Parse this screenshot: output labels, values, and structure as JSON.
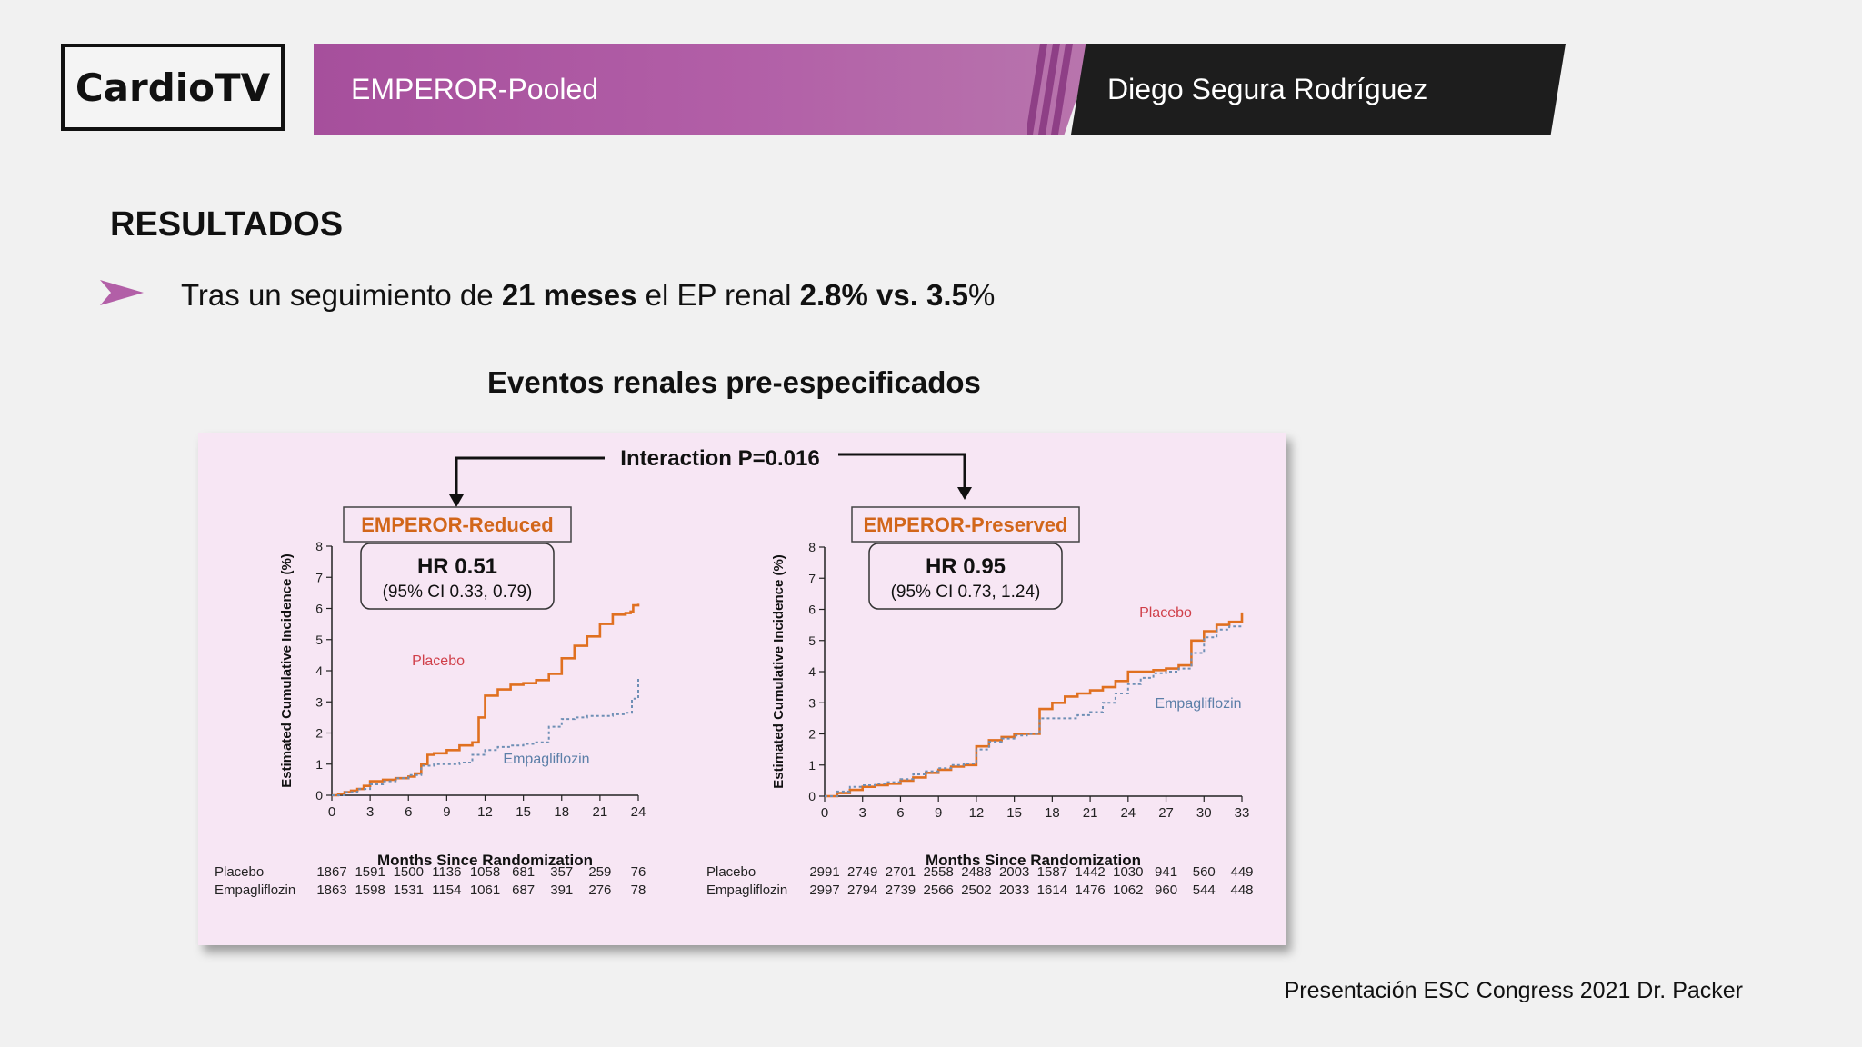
{
  "brand": {
    "logo_text": "CardioTV"
  },
  "banner": {
    "title": "EMPEROR-Pooled",
    "speaker": "Diego Segura Rodríguez"
  },
  "colors": {
    "accent": "#b25fa7",
    "placebo": "#e07020",
    "empagliflozin": "#6f8fb5",
    "chart_bg": "#f7e6f4"
  },
  "heading": "RESULTADOS",
  "bullet": {
    "icon": "chevron-arrow-icon",
    "t1": "Tras un seguimiento de ",
    "b1": "21 meses",
    "t2": " el EP renal ",
    "b2": "2.8% vs. 3.5",
    "t3": "%"
  },
  "subtitle": "Eventos renales pre-especificados",
  "interaction_label": "Interaction P=0.016",
  "footer": "Presentación ESC Congress 2021  Dr. Packer",
  "chart_data": [
    {
      "type": "line",
      "title": "EMPEROR-Reduced",
      "hr_text": "HR 0.51",
      "ci_text": "(95% CI 0.33, 0.79)",
      "xlabel": "Months Since Randomization",
      "ylabel": "Estimated Cumulative Incidence (%)",
      "xlim": [
        0,
        24
      ],
      "ylim": [
        0,
        8
      ],
      "xticks": [
        0,
        3,
        6,
        9,
        12,
        15,
        18,
        21,
        24
      ],
      "yticks": [
        0,
        1,
        2,
        3,
        4,
        5,
        6,
        7,
        8
      ],
      "series": [
        {
          "name": "Placebo",
          "label_text": "Placebo",
          "x": [
            0,
            0.5,
            1,
            1.5,
            2,
            2.5,
            3,
            4,
            5,
            6,
            6.5,
            7,
            7.5,
            8,
            9,
            10,
            11,
            11.5,
            12,
            13,
            14,
            15,
            16,
            17,
            18,
            19,
            20,
            21,
            22,
            23,
            23.4,
            23.6,
            24
          ],
          "y": [
            0,
            0.05,
            0.1,
            0.15,
            0.2,
            0.3,
            0.45,
            0.5,
            0.55,
            0.6,
            0.7,
            1.0,
            1.3,
            1.35,
            1.45,
            1.6,
            1.7,
            2.5,
            3.2,
            3.4,
            3.55,
            3.6,
            3.7,
            3.9,
            4.4,
            4.8,
            5.1,
            5.5,
            5.8,
            5.85,
            5.9,
            6.1,
            6.15
          ]
        },
        {
          "name": "Empagliflozin",
          "label_text": "Empagliflozin",
          "x": [
            0,
            1,
            2,
            3,
            4,
            5,
            6,
            7,
            8,
            9,
            10,
            11,
            12,
            13,
            14,
            15,
            16,
            17,
            18,
            19,
            20,
            21,
            22,
            23,
            23.5,
            24
          ],
          "y": [
            0,
            0.1,
            0.2,
            0.35,
            0.45,
            0.55,
            0.65,
            0.95,
            1.0,
            1.0,
            1.05,
            1.3,
            1.45,
            1.55,
            1.6,
            1.65,
            1.7,
            2.2,
            2.45,
            2.5,
            2.55,
            2.55,
            2.6,
            2.65,
            3.1,
            3.8
          ]
        }
      ],
      "risk_table": {
        "rows": [
          {
            "name": "Placebo",
            "values": [
              "1867",
              "1591",
              "1500",
              "1136",
              "1058",
              "681",
              "357",
              "259",
              "76"
            ]
          },
          {
            "name": "Empagliflozin",
            "values": [
              "1863",
              "1598",
              "1531",
              "1154",
              "1061",
              "687",
              "391",
              "276",
              "78"
            ]
          }
        ]
      }
    },
    {
      "type": "line",
      "title": "EMPEROR-Preserved",
      "hr_text": "HR 0.95",
      "ci_text": "(95% CI 0.73, 1.24)",
      "xlabel": "Months Since Randomization",
      "ylabel": "Estimated Cumulative Incidence (%)",
      "xlim": [
        0,
        33
      ],
      "ylim": [
        0,
        8
      ],
      "xticks": [
        0,
        3,
        6,
        9,
        12,
        15,
        18,
        21,
        24,
        27,
        30,
        33
      ],
      "yticks": [
        0,
        1,
        2,
        3,
        4,
        5,
        6,
        7,
        8
      ],
      "series": [
        {
          "name": "Placebo",
          "label_text": "Placebo",
          "x": [
            0,
            1,
            2,
            3,
            4,
            5,
            6,
            7,
            8,
            9,
            10,
            11,
            12,
            13,
            14,
            15,
            16,
            17,
            18,
            19,
            20,
            21,
            22,
            23,
            24,
            25,
            26,
            27,
            28,
            29,
            30,
            31,
            32,
            33
          ],
          "y": [
            0,
            0.1,
            0.2,
            0.3,
            0.35,
            0.4,
            0.5,
            0.6,
            0.75,
            0.85,
            0.95,
            1.0,
            1.6,
            1.8,
            1.9,
            2.0,
            2.0,
            2.8,
            3.0,
            3.2,
            3.3,
            3.4,
            3.5,
            3.7,
            4.0,
            4.0,
            4.05,
            4.1,
            4.2,
            5.0,
            5.3,
            5.5,
            5.6,
            5.9
          ]
        },
        {
          "name": "Empagliflozin",
          "label_text": "Empagliflozin",
          "x": [
            0,
            1,
            2,
            3,
            4,
            5,
            6,
            7,
            8,
            9,
            10,
            11,
            12,
            13,
            14,
            15,
            16,
            17,
            18,
            19,
            20,
            21,
            22,
            23,
            24,
            25,
            26,
            27,
            28,
            29,
            30,
            31,
            32,
            33
          ],
          "y": [
            0,
            0.15,
            0.3,
            0.35,
            0.4,
            0.45,
            0.55,
            0.7,
            0.8,
            0.9,
            1.0,
            1.05,
            1.5,
            1.75,
            1.85,
            1.95,
            2.0,
            2.5,
            2.5,
            2.5,
            2.6,
            2.7,
            3.0,
            3.3,
            3.6,
            3.8,
            3.95,
            4.0,
            4.1,
            4.6,
            5.1,
            5.35,
            5.45,
            5.5
          ]
        }
      ],
      "risk_table": {
        "rows": [
          {
            "name": "Placebo",
            "values": [
              "2991",
              "2749",
              "2701",
              "2558",
              "2488",
              "2003",
              "1587",
              "1442",
              "1030",
              "941",
              "560",
              "449"
            ]
          },
          {
            "name": "Empagliflozin",
            "values": [
              "2997",
              "2794",
              "2739",
              "2566",
              "2502",
              "2033",
              "1614",
              "1476",
              "1062",
              "960",
              "544",
              "448"
            ]
          }
        ]
      }
    }
  ]
}
